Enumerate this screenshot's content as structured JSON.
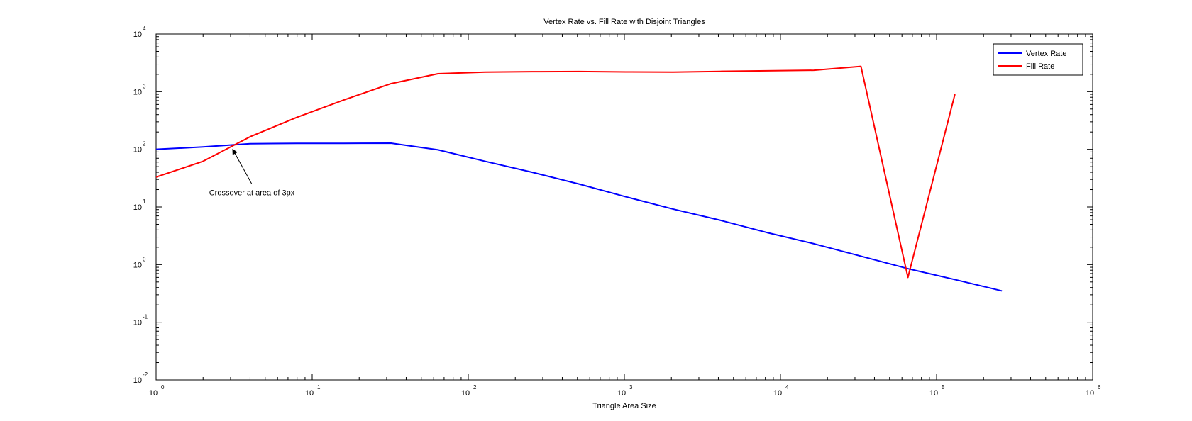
{
  "chart_data": {
    "type": "line",
    "title": "Vertex Rate vs. Fill Rate with Disjoint Triangles",
    "xlabel": "Triangle Area Size",
    "ylabel": "",
    "xscale": "log",
    "yscale": "log",
    "xlim": [
      1,
      1000000
    ],
    "ylim": [
      0.01,
      10000
    ],
    "x_ticks": [
      {
        "base": "10",
        "exp": "0"
      },
      {
        "base": "10",
        "exp": "1"
      },
      {
        "base": "10",
        "exp": "2"
      },
      {
        "base": "10",
        "exp": "3"
      },
      {
        "base": "10",
        "exp": "4"
      },
      {
        "base": "10",
        "exp": "5"
      },
      {
        "base": "10",
        "exp": "6"
      }
    ],
    "y_ticks": [
      {
        "base": "10",
        "exp": "-2"
      },
      {
        "base": "10",
        "exp": "-1"
      },
      {
        "base": "10",
        "exp": "0"
      },
      {
        "base": "10",
        "exp": "1"
      },
      {
        "base": "10",
        "exp": "2"
      },
      {
        "base": "10",
        "exp": "3"
      },
      {
        "base": "10",
        "exp": "4"
      }
    ],
    "grid": false,
    "legend_position": "top-right",
    "series": [
      {
        "name": "Vertex Rate",
        "color": "#0000ff",
        "points": [
          [
            1,
            100
          ],
          [
            2,
            110
          ],
          [
            4,
            125
          ],
          [
            8,
            127
          ],
          [
            16,
            127
          ],
          [
            32,
            128
          ],
          [
            64,
            98
          ],
          [
            128,
            62
          ],
          [
            256,
            40
          ],
          [
            512,
            25
          ],
          [
            1024,
            15
          ],
          [
            2048,
            9.2
          ],
          [
            4096,
            5.9
          ],
          [
            8192,
            3.6
          ],
          [
            16384,
            2.3
          ],
          [
            32768,
            1.4
          ],
          [
            65536,
            0.85
          ],
          [
            131072,
            0.55
          ],
          [
            262144,
            0.35
          ]
        ]
      },
      {
        "name": "Fill Rate",
        "color": "#ff0000",
        "points": [
          [
            1,
            33
          ],
          [
            2,
            62
          ],
          [
            4,
            165
          ],
          [
            8,
            360
          ],
          [
            16,
            720
          ],
          [
            32,
            1380
          ],
          [
            64,
            2050
          ],
          [
            128,
            2180
          ],
          [
            256,
            2220
          ],
          [
            512,
            2240
          ],
          [
            1024,
            2200
          ],
          [
            2048,
            2180
          ],
          [
            4096,
            2250
          ],
          [
            8192,
            2300
          ],
          [
            16384,
            2350
          ],
          [
            32768,
            2750
          ],
          [
            65536,
            0.6
          ],
          [
            131072,
            900
          ]
        ]
      }
    ],
    "annotations": [
      {
        "text": "Crossover at area of 3px",
        "x": 3,
        "y": 115
      }
    ]
  }
}
